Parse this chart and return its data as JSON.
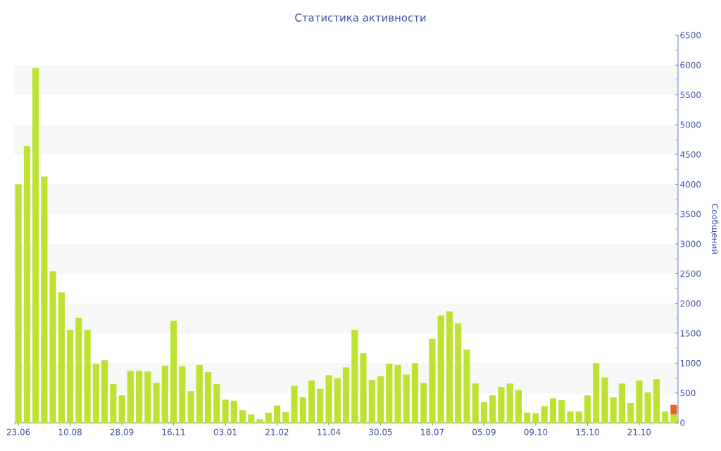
{
  "chart_data": {
    "type": "bar",
    "title": "Статистика активности",
    "ylabel": "Сообщений",
    "categories": [
      "23.06",
      null,
      null,
      null,
      null,
      null,
      "10.08",
      null,
      null,
      null,
      null,
      null,
      "28.09",
      null,
      null,
      null,
      null,
      null,
      "16.11",
      null,
      null,
      null,
      null,
      null,
      "03.01",
      null,
      null,
      null,
      null,
      null,
      "21.02",
      null,
      null,
      null,
      null,
      null,
      "11.04",
      null,
      null,
      null,
      null,
      null,
      "30.05",
      null,
      null,
      null,
      null,
      null,
      "18.07",
      null,
      null,
      null,
      null,
      null,
      "05.09",
      null,
      null,
      null,
      null,
      null,
      "09.10",
      null,
      null,
      null,
      null,
      null,
      "15.10",
      null,
      null,
      null,
      null,
      null,
      "21.10",
      null,
      null,
      null,
      null
    ],
    "stacked": true,
    "series": [
      {
        "color": "#bde232",
        "values": [
          4000,
          4640,
          5950,
          4130,
          2540,
          2190,
          1560,
          1760,
          1560,
          990,
          1050,
          650,
          460,
          870,
          870,
          860,
          670,
          960,
          1710,
          950,
          530,
          970,
          850,
          650,
          390,
          370,
          210,
          140,
          60,
          170,
          290,
          180,
          620,
          430,
          710,
          570,
          800,
          750,
          930,
          1560,
          1170,
          720,
          780,
          990,
          970,
          810,
          1000,
          670,
          1410,
          1800,
          1870,
          1670,
          1230,
          660,
          350,
          460,
          600,
          660,
          550,
          170,
          160,
          280,
          410,
          380,
          190,
          190,
          460,
          1000,
          760,
          430,
          660,
          330,
          710,
          510,
          730,
          190,
          140
        ]
      },
      {
        "color": "#e2622b",
        "values": [
          null,
          null,
          null,
          null,
          null,
          null,
          null,
          null,
          null,
          null,
          null,
          null,
          null,
          null,
          null,
          null,
          null,
          null,
          null,
          null,
          null,
          null,
          null,
          null,
          null,
          null,
          null,
          null,
          null,
          null,
          null,
          null,
          null,
          null,
          null,
          null,
          null,
          null,
          null,
          null,
          null,
          null,
          null,
          null,
          null,
          null,
          null,
          null,
          null,
          null,
          null,
          null,
          null,
          null,
          null,
          null,
          null,
          null,
          null,
          null,
          null,
          null,
          null,
          null,
          null,
          null,
          null,
          null,
          null,
          null,
          null,
          null,
          null,
          null,
          null,
          null,
          160
        ]
      }
    ],
    "ylim": [
      0,
      6500
    ],
    "yticks": [
      0,
      500,
      1000,
      1500,
      2000,
      2500,
      3000,
      3500,
      4000,
      4500,
      5000,
      5500,
      6000,
      6500
    ],
    "bands": [
      {
        "axis": "y",
        "from": 500,
        "to": 1000,
        "color": "#f7f7f7"
      },
      {
        "axis": "y",
        "from": 1500,
        "to": 2000,
        "color": "#f7f7f7"
      },
      {
        "axis": "y",
        "from": 2500,
        "to": 3000,
        "color": "#f7f7f7"
      },
      {
        "axis": "y",
        "from": 3500,
        "to": 4000,
        "color": "#f7f7f7"
      },
      {
        "axis": "y",
        "from": 4500,
        "to": 5000,
        "color": "#f7f7f7"
      },
      {
        "axis": "y",
        "from": 5500,
        "to": 6000,
        "color": "#f7f7f7"
      }
    ]
  }
}
